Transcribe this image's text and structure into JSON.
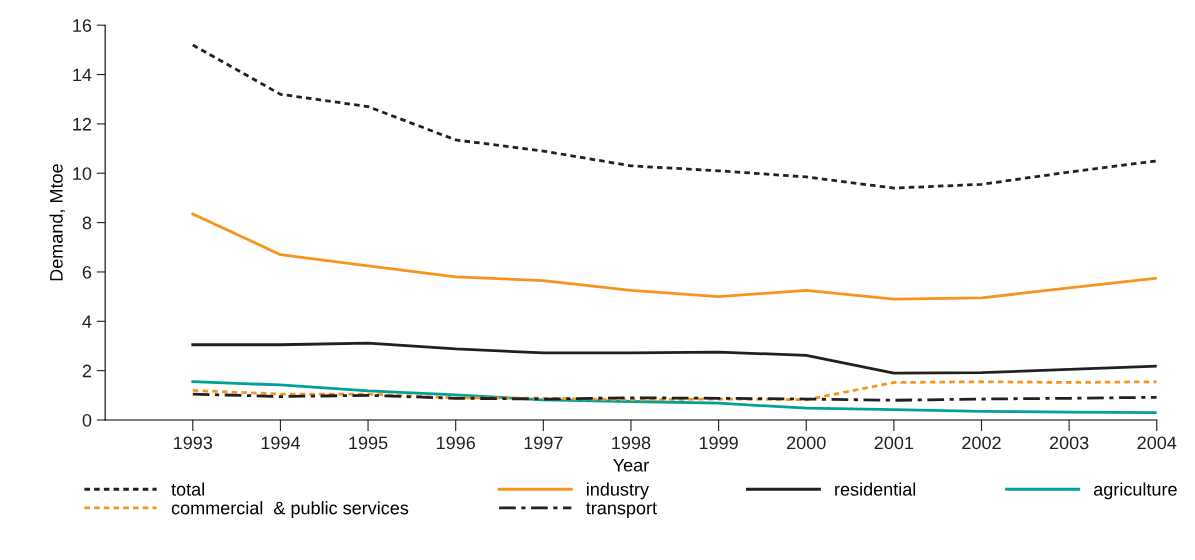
{
  "chart_data": {
    "type": "line",
    "xlabel": "Year",
    "ylabel": "Demand, Mtoe",
    "x": [
      1993,
      1994,
      1995,
      1996,
      1997,
      1998,
      1999,
      2000,
      2001,
      2002,
      2003,
      2004
    ],
    "xlim": [
      1992,
      2004
    ],
    "xticks": [
      1993,
      1994,
      1995,
      1996,
      1997,
      1998,
      1999,
      2000,
      2001,
      2002,
      2003,
      2004
    ],
    "ylim": [
      0,
      16
    ],
    "yticks": [
      0,
      2,
      4,
      6,
      8,
      10,
      12,
      14,
      16
    ],
    "grid": false,
    "legend": "bottom",
    "marker": "none",
    "series": [
      {
        "name": "total",
        "color": "#231f20",
        "line_style": "dotted",
        "values": [
          15.2,
          13.2,
          12.7,
          11.35,
          10.9,
          10.3,
          10.1,
          9.85,
          9.4,
          9.55,
          10.05,
          10.5
        ]
      },
      {
        "name": "industry",
        "color": "#f7941d",
        "line_style": "solid",
        "values": [
          8.35,
          6.7,
          6.25,
          5.8,
          5.65,
          5.25,
          5.0,
          5.25,
          4.9,
          4.95,
          5.35,
          5.75
        ]
      },
      {
        "name": "residential",
        "color": "#231f20",
        "line_style": "solid",
        "values": [
          3.05,
          3.05,
          3.12,
          2.88,
          2.72,
          2.72,
          2.75,
          2.62,
          1.9,
          1.92,
          2.05,
          2.18
        ]
      },
      {
        "name": "agriculture",
        "color": "#00a19a",
        "line_style": "solid",
        "values": [
          1.55,
          1.42,
          1.18,
          1.02,
          0.82,
          0.75,
          0.68,
          0.48,
          0.42,
          0.35,
          0.32,
          0.3
        ]
      },
      {
        "name": "commercial  & public services",
        "color": "#f7941d",
        "line_style": "dotted",
        "values": [
          1.2,
          1.05,
          1.05,
          0.9,
          0.88,
          0.82,
          0.85,
          0.82,
          1.52,
          1.55,
          1.52,
          1.55
        ]
      },
      {
        "name": "transport",
        "color": "#231f20",
        "line_style": "dashdot",
        "values": [
          1.05,
          0.95,
          1.0,
          0.88,
          0.85,
          0.9,
          0.88,
          0.85,
          0.8,
          0.85,
          0.88,
          0.92
        ]
      }
    ]
  }
}
